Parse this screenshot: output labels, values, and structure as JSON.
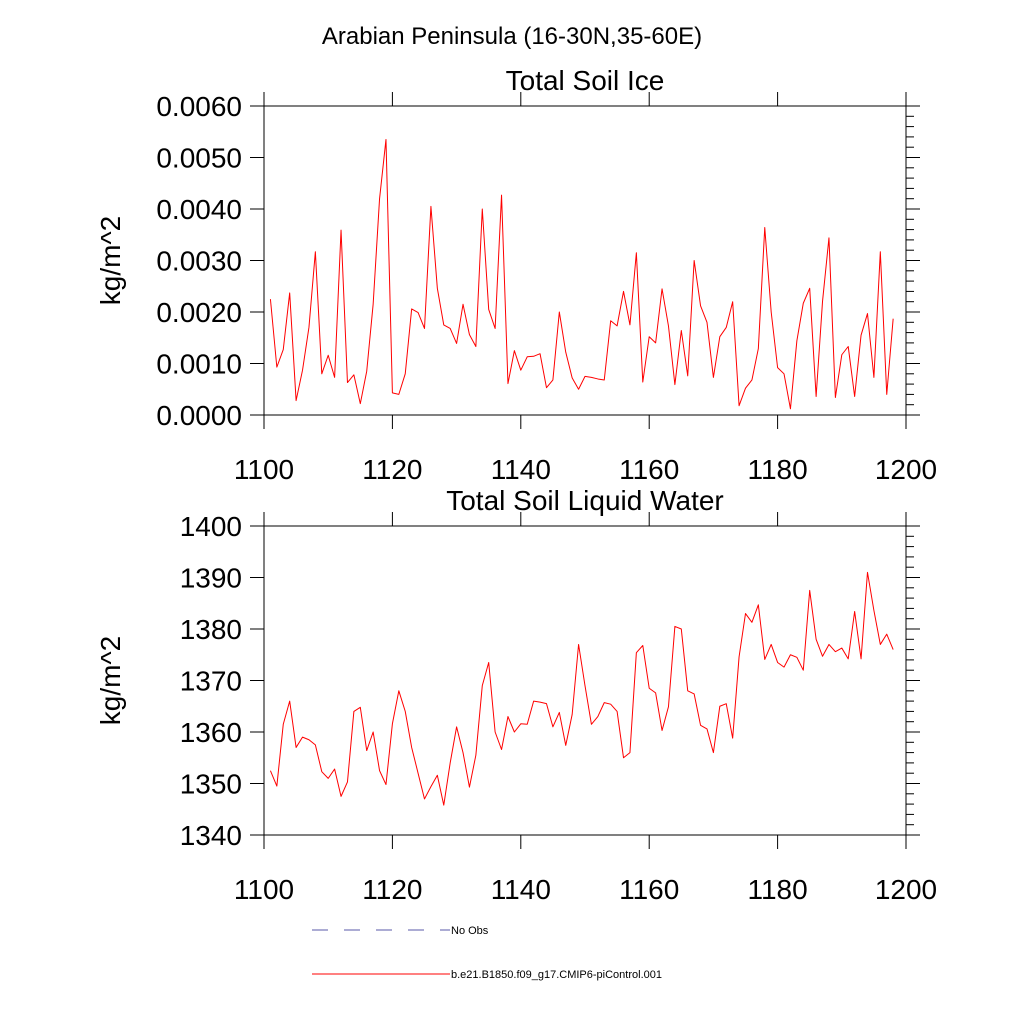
{
  "page_title": "Arabian Peninsula (16-30N,35-60E)",
  "chart_data": [
    {
      "type": "line",
      "title": "Total Soil Ice",
      "xlabel": "",
      "ylabel": "kg/m^2",
      "xlim": [
        1100,
        1200
      ],
      "ylim": [
        0.0,
        0.006
      ],
      "x_ticks": [
        1100,
        1120,
        1140,
        1160,
        1180,
        1200
      ],
      "x_tick_labels": [
        "1100",
        "1120",
        "1140",
        "1160",
        "1180",
        "1200"
      ],
      "y_ticks": [
        0.0,
        0.001,
        0.002,
        0.003,
        0.004,
        0.005,
        0.006
      ],
      "y_tick_labels": [
        "0.0000",
        "0.0010",
        "0.0020",
        "0.0030",
        "0.0040",
        "0.0050",
        "0.0060"
      ],
      "series": [
        {
          "name": "b.e21.B1850.f09_g17.CMIP6-piControl.001",
          "color": "#ff0000",
          "x_start": 1101,
          "values": [
            0.00225,
            0.00093,
            0.00127,
            0.00237,
            0.00028,
            0.00087,
            0.0017,
            0.00317,
            0.0008,
            0.00116,
            0.00073,
            0.00359,
            0.00063,
            0.00078,
            0.00022,
            0.00085,
            0.00215,
            0.0042,
            0.00535,
            0.00043,
            0.0004,
            0.0008,
            0.00206,
            0.00199,
            0.00168,
            0.00405,
            0.00246,
            0.00175,
            0.00168,
            0.00139,
            0.00215,
            0.00156,
            0.00133,
            0.004,
            0.00205,
            0.00168,
            0.00427,
            0.00061,
            0.00125,
            0.00087,
            0.00113,
            0.00114,
            0.00119,
            0.00053,
            0.00068,
            0.002,
            0.00122,
            0.00072,
            0.0005,
            0.00075,
            0.00073,
            0.0007,
            0.00068,
            0.00183,
            0.00173,
            0.0024,
            0.00175,
            0.00315,
            0.00064,
            0.00152,
            0.0014,
            0.00245,
            0.00173,
            0.00059,
            0.00164,
            0.00076,
            0.003,
            0.00212,
            0.0018,
            0.00073,
            0.00152,
            0.0017,
            0.0022,
            0.00018,
            0.00052,
            0.00068,
            0.00129,
            0.00364,
            0.002,
            0.00092,
            0.0008,
            0.00012,
            0.00144,
            0.00217,
            0.00246,
            0.00036,
            0.00221,
            0.00344,
            0.00034,
            0.00117,
            0.00133,
            0.00036,
            0.00155,
            0.00197,
            0.00073,
            0.00317,
            0.0004,
            0.00187
          ]
        }
      ]
    },
    {
      "type": "line",
      "title": "Total Soil Liquid Water",
      "xlabel": "",
      "ylabel": "kg/m^2",
      "xlim": [
        1100,
        1200
      ],
      "ylim": [
        1340,
        1400
      ],
      "x_ticks": [
        1100,
        1120,
        1140,
        1160,
        1180,
        1200
      ],
      "x_tick_labels": [
        "1100",
        "1120",
        "1140",
        "1160",
        "1180",
        "1200"
      ],
      "y_ticks": [
        1340,
        1350,
        1360,
        1370,
        1380,
        1390,
        1400
      ],
      "y_tick_labels": [
        "1340",
        "1350",
        "1360",
        "1370",
        "1380",
        "1390",
        "1400"
      ],
      "series": [
        {
          "name": "b.e21.B1850.f09_g17.CMIP6-piControl.001",
          "color": "#ff0000",
          "x_start": 1101,
          "values": [
            1352.5,
            1349.5,
            1361.5,
            1366.0,
            1357.0,
            1359.0,
            1358.5,
            1357.5,
            1352.3,
            1351.0,
            1352.8,
            1347.5,
            1350.3,
            1364.0,
            1364.8,
            1356.4,
            1360.0,
            1352.5,
            1349.8,
            1361.6,
            1368.0,
            1364.0,
            1357.0,
            1352.0,
            1347.0,
            1349.4,
            1351.6,
            1345.8,
            1354.0,
            1361.0,
            1356.0,
            1349.3,
            1355.5,
            1369.0,
            1373.5,
            1360.0,
            1356.6,
            1363.0,
            1360.0,
            1361.6,
            1361.5,
            1366.0,
            1365.8,
            1365.5,
            1361.0,
            1363.8,
            1357.4,
            1363.4,
            1377.0,
            1369.0,
            1361.5,
            1363.0,
            1365.7,
            1365.4,
            1364.0,
            1355.0,
            1356.0,
            1375.4,
            1376.8,
            1368.5,
            1367.6,
            1360.3,
            1364.9,
            1380.5,
            1380.0,
            1368.0,
            1367.4,
            1361.3,
            1360.6,
            1356.0,
            1365.0,
            1365.5,
            1358.8,
            1374.6,
            1383.0,
            1381.3,
            1384.7,
            1374.1,
            1377.0,
            1373.5,
            1372.6,
            1375.0,
            1374.5,
            1372.0,
            1387.5,
            1378.0,
            1374.7,
            1377.0,
            1375.6,
            1376.3,
            1374.2,
            1383.4,
            1374.2,
            1391.0,
            1383.6,
            1377.0,
            1379.0,
            1376.0
          ]
        }
      ]
    }
  ],
  "legend": {
    "placement": "bottom",
    "entries": [
      {
        "label": "No Obs",
        "color": "#5a5aa8",
        "style": "dashed"
      },
      {
        "label": "b.e21.B1850.f09_g17.CMIP6-piControl.001",
        "color": "#ff0000",
        "style": "solid"
      }
    ]
  }
}
